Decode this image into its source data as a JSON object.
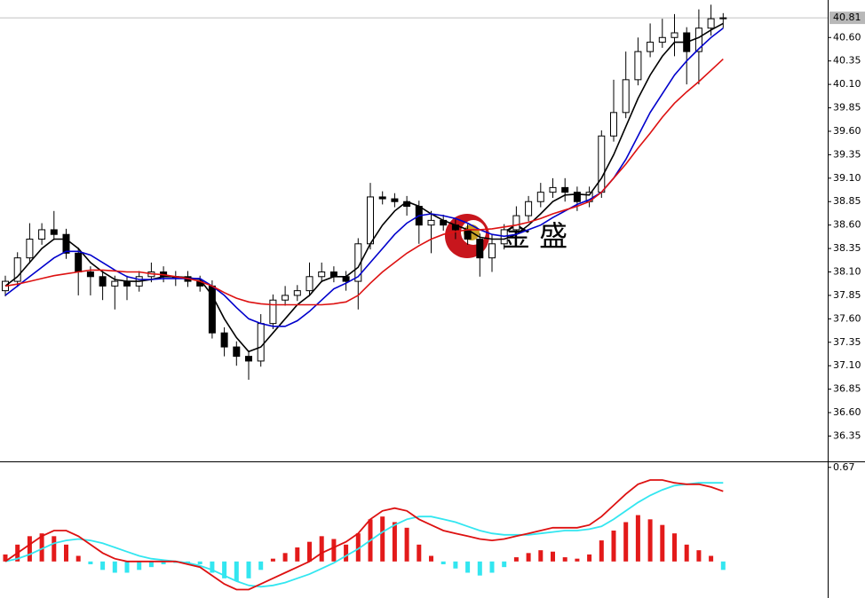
{
  "chart_data": [
    {
      "type": "candlestick",
      "watermark": "金 盛",
      "ylim": [
        36.08,
        41.0
      ],
      "yticks": [
        {
          "value": 40.6,
          "label": "40.60"
        },
        40.35,
        {
          "value": 40.1,
          "label": "40.10"
        },
        39.85,
        {
          "value": 39.6,
          "label": "39.60"
        },
        39.35,
        {
          "value": 39.1,
          "label": "39.10"
        },
        38.85,
        {
          "value": 38.6,
          "label": "38.60"
        },
        38.35,
        {
          "value": 38.1,
          "label": "38.10"
        },
        37.85,
        {
          "value": 37.6,
          "label": "37.60"
        },
        37.35,
        {
          "value": 37.1,
          "label": "37.10"
        },
        36.85,
        {
          "value": 36.6,
          "label": "36.60"
        },
        36.35
      ],
      "last_price": 40.81,
      "up_color": "#ffffff",
      "down_color": "#000000",
      "open": [
        37.9,
        38.0,
        38.25,
        38.45,
        38.55,
        38.5,
        38.3,
        38.1,
        38.05,
        37.95,
        38.0,
        37.95,
        38.05,
        38.1,
        38.05,
        38.05,
        38.0,
        37.95,
        37.45,
        37.3,
        37.2,
        37.15,
        37.55,
        37.8,
        37.85,
        37.9,
        38.05,
        38.1,
        38.05,
        38.0,
        38.4,
        38.9,
        38.88,
        38.85,
        38.8,
        38.6,
        38.65,
        38.6,
        38.55,
        38.45,
        38.25,
        38.4,
        38.55,
        38.7,
        38.85,
        38.95,
        39.0,
        38.95,
        38.85,
        38.95,
        39.55,
        39.8,
        40.15,
        40.45,
        40.55,
        40.6,
        40.65,
        40.45,
        40.7,
        40.8
      ],
      "high": [
        38.06,
        38.31,
        38.62,
        38.62,
        38.75,
        38.56,
        38.36,
        38.16,
        38.11,
        38.06,
        38.06,
        38.11,
        38.2,
        38.16,
        38.11,
        38.11,
        38.06,
        38.01,
        37.51,
        37.36,
        37.26,
        37.65,
        37.86,
        37.95,
        37.96,
        38.2,
        38.2,
        38.16,
        38.11,
        38.46,
        39.05,
        38.96,
        38.94,
        38.91,
        38.86,
        38.75,
        38.71,
        38.66,
        38.61,
        38.51,
        38.5,
        38.61,
        38.8,
        38.91,
        39.05,
        39.1,
        39.1,
        39.01,
        39.01,
        39.61,
        40.15,
        40.45,
        40.6,
        40.75,
        40.8,
        40.85,
        40.71,
        40.9,
        40.95,
        40.86
      ],
      "low": [
        37.84,
        37.94,
        38.19,
        38.39,
        38.44,
        38.24,
        37.85,
        37.85,
        37.8,
        37.7,
        37.8,
        37.89,
        37.99,
        37.99,
        37.95,
        37.94,
        37.89,
        37.39,
        37.2,
        37.1,
        36.95,
        37.09,
        37.49,
        37.74,
        37.79,
        37.84,
        37.99,
        37.99,
        37.9,
        37.7,
        38.34,
        38.82,
        38.79,
        38.7,
        38.4,
        38.3,
        38.54,
        38.45,
        38.39,
        38.05,
        38.1,
        38.34,
        38.49,
        38.64,
        38.79,
        38.89,
        38.85,
        38.75,
        38.79,
        38.89,
        39.49,
        39.74,
        40.09,
        40.39,
        40.49,
        40.4,
        40.1,
        40.1,
        40.62,
        40.7
      ],
      "close": [
        38.0,
        38.25,
        38.45,
        38.55,
        38.5,
        38.3,
        38.1,
        38.05,
        37.95,
        38.0,
        37.95,
        38.05,
        38.1,
        38.05,
        38.05,
        38.0,
        37.95,
        37.45,
        37.3,
        37.2,
        37.15,
        37.55,
        37.8,
        37.85,
        37.9,
        38.05,
        38.1,
        38.05,
        38.0,
        38.4,
        38.9,
        38.88,
        38.85,
        38.8,
        38.6,
        38.65,
        38.6,
        38.55,
        38.45,
        38.25,
        38.4,
        38.55,
        38.7,
        38.85,
        38.95,
        39.0,
        38.95,
        38.85,
        38.95,
        39.55,
        39.8,
        40.15,
        40.45,
        40.55,
        40.6,
        40.65,
        40.45,
        40.7,
        40.8,
        40.81
      ],
      "moving_averages": [
        {
          "color": "#000000",
          "values": [
            37.95,
            38.05,
            38.2,
            38.35,
            38.45,
            38.45,
            38.35,
            38.2,
            38.1,
            38.02,
            38.0,
            38.0,
            38.02,
            38.05,
            38.05,
            38.04,
            38.02,
            37.85,
            37.6,
            37.4,
            37.25,
            37.3,
            37.45,
            37.6,
            37.75,
            37.85,
            38.0,
            38.05,
            38.05,
            38.15,
            38.4,
            38.6,
            38.75,
            38.85,
            38.8,
            38.72,
            38.65,
            38.6,
            38.55,
            38.47,
            38.45,
            38.45,
            38.5,
            38.6,
            38.72,
            38.85,
            38.92,
            38.93,
            38.92,
            39.1,
            39.35,
            39.65,
            39.95,
            40.2,
            40.4,
            40.55,
            40.55,
            40.6,
            40.68,
            40.75
          ]
        },
        {
          "color": "#0000cc",
          "values": [
            37.85,
            37.95,
            38.05,
            38.15,
            38.25,
            38.32,
            38.32,
            38.28,
            38.2,
            38.12,
            38.05,
            38.02,
            38.02,
            38.03,
            38.03,
            38.03,
            38.03,
            37.95,
            37.85,
            37.72,
            37.6,
            37.55,
            37.52,
            37.52,
            37.58,
            37.68,
            37.8,
            37.92,
            37.98,
            38.05,
            38.2,
            38.35,
            38.5,
            38.62,
            38.7,
            38.72,
            38.7,
            38.67,
            38.62,
            38.55,
            38.5,
            38.48,
            38.5,
            38.55,
            38.6,
            38.68,
            38.75,
            38.82,
            38.87,
            38.95,
            39.1,
            39.3,
            39.55,
            39.8,
            40.0,
            40.2,
            40.35,
            40.48,
            40.6,
            40.7
          ]
        },
        {
          "color": "#dd1111",
          "values": [
            37.95,
            37.97,
            38.0,
            38.03,
            38.06,
            38.08,
            38.1,
            38.12,
            38.12,
            38.11,
            38.1,
            38.1,
            38.08,
            38.07,
            38.05,
            38.03,
            38.0,
            37.95,
            37.88,
            37.82,
            37.78,
            37.76,
            37.75,
            37.75,
            37.75,
            37.75,
            37.75,
            37.76,
            37.78,
            37.85,
            37.98,
            38.1,
            38.2,
            38.3,
            38.38,
            38.45,
            38.5,
            38.53,
            38.55,
            38.55,
            38.56,
            38.58,
            38.6,
            38.63,
            38.67,
            38.72,
            38.76,
            38.8,
            38.85,
            38.95,
            39.1,
            39.25,
            39.42,
            39.58,
            39.75,
            39.9,
            40.02,
            40.13,
            40.25,
            40.37
          ]
        }
      ]
    },
    {
      "type": "macd",
      "ylim": [
        -0.26,
        0.7
      ],
      "yticks": [
        0.67
      ],
      "histogram": {
        "up_color": "#e31a1a",
        "down_color": "#33e6f0",
        "values": [
          0.05,
          0.12,
          0.18,
          0.2,
          0.18,
          0.12,
          0.04,
          -0.02,
          -0.06,
          -0.08,
          -0.08,
          -0.06,
          -0.04,
          -0.02,
          -0.01,
          -0.01,
          -0.02,
          -0.08,
          -0.12,
          -0.14,
          -0.12,
          -0.06,
          0.02,
          0.06,
          0.1,
          0.14,
          0.18,
          0.16,
          0.12,
          0.2,
          0.3,
          0.32,
          0.28,
          0.24,
          0.12,
          0.04,
          -0.02,
          -0.05,
          -0.08,
          -0.1,
          -0.08,
          -0.04,
          0.03,
          0.06,
          0.08,
          0.07,
          0.03,
          0.02,
          0.05,
          0.15,
          0.22,
          0.28,
          0.33,
          0.3,
          0.26,
          0.2,
          0.12,
          0.08,
          0.04,
          -0.06
        ]
      },
      "lines": [
        {
          "color": "#33e6f0",
          "values": [
            0.0,
            0.02,
            0.05,
            0.09,
            0.13,
            0.15,
            0.16,
            0.15,
            0.13,
            0.1,
            0.07,
            0.04,
            0.02,
            0.01,
            0.0,
            -0.01,
            -0.03,
            -0.06,
            -0.1,
            -0.14,
            -0.17,
            -0.18,
            -0.17,
            -0.15,
            -0.12,
            -0.09,
            -0.05,
            -0.01,
            0.04,
            0.09,
            0.15,
            0.21,
            0.26,
            0.3,
            0.32,
            0.32,
            0.3,
            0.28,
            0.25,
            0.22,
            0.2,
            0.19,
            0.19,
            0.19,
            0.2,
            0.21,
            0.22,
            0.22,
            0.23,
            0.25,
            0.3,
            0.36,
            0.42,
            0.47,
            0.51,
            0.54,
            0.55,
            0.56,
            0.56,
            0.56
          ]
        },
        {
          "color": "#dd1111",
          "values": [
            0.0,
            0.06,
            0.12,
            0.18,
            0.22,
            0.22,
            0.18,
            0.12,
            0.06,
            0.02,
            0.0,
            0.0,
            0.0,
            0.0,
            0.0,
            -0.02,
            -0.04,
            -0.1,
            -0.16,
            -0.2,
            -0.2,
            -0.16,
            -0.12,
            -0.08,
            -0.04,
            0.0,
            0.06,
            0.1,
            0.14,
            0.2,
            0.3,
            0.36,
            0.38,
            0.36,
            0.3,
            0.26,
            0.22,
            0.2,
            0.18,
            0.16,
            0.15,
            0.16,
            0.18,
            0.2,
            0.22,
            0.24,
            0.24,
            0.24,
            0.26,
            0.32,
            0.4,
            0.48,
            0.55,
            0.58,
            0.58,
            0.56,
            0.55,
            0.55,
            0.53,
            0.5
          ]
        }
      ]
    }
  ]
}
